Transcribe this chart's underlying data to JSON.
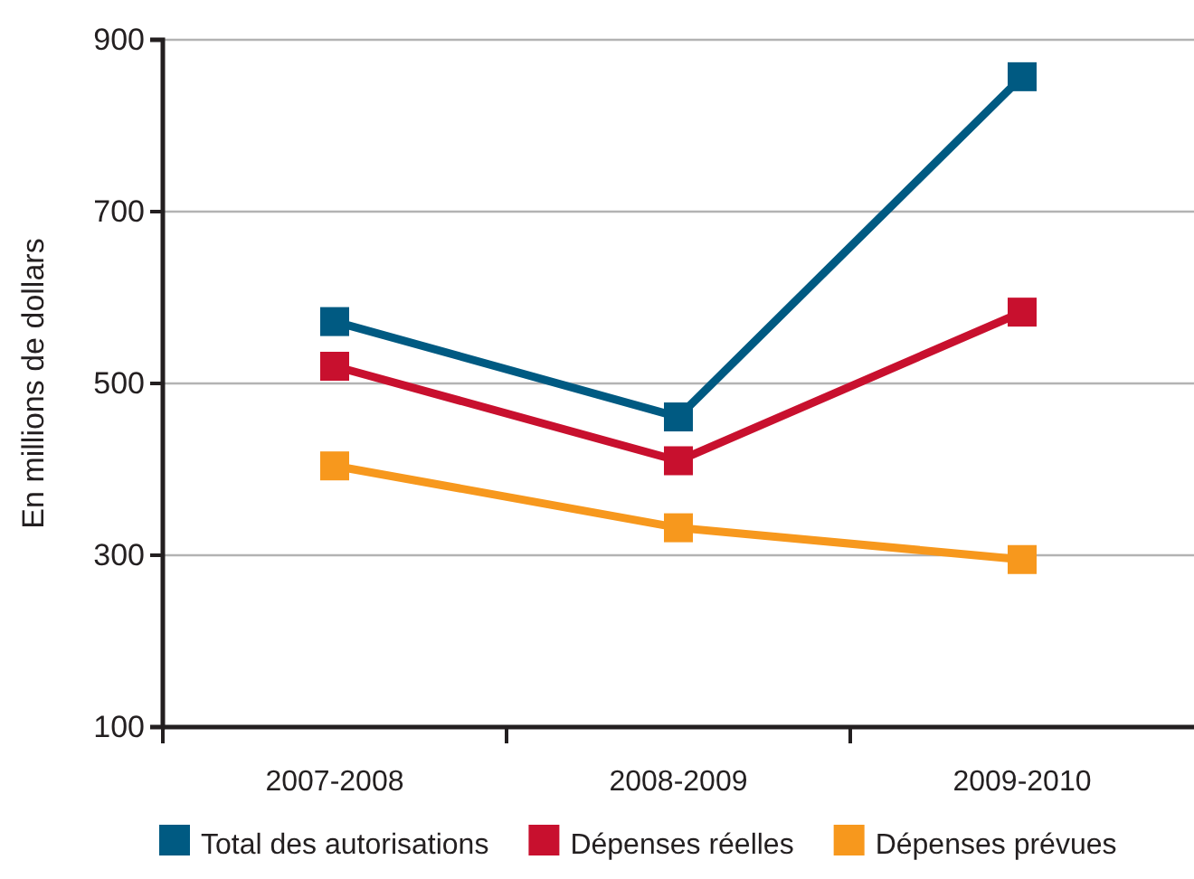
{
  "chart_data": {
    "type": "line",
    "ylabel": "En millions de dollars",
    "categories": [
      "2007-2008",
      "2008-2009",
      "2009-2010"
    ],
    "series": [
      {
        "name": "Total des autorisations",
        "color": "#005a82",
        "values": [
          572,
          461,
          857
        ]
      },
      {
        "name": "Dépenses réelles",
        "color": "#c8102e",
        "values": [
          520,
          410,
          583
        ]
      },
      {
        "name": "Dépenses prévues",
        "color": "#f7981d",
        "values": [
          404,
          332,
          295
        ]
      }
    ],
    "ylim": [
      100,
      900
    ],
    "yticks": [
      100,
      300,
      500,
      700,
      900
    ],
    "grid": "y",
    "legend": "bottom",
    "marker": "square",
    "line_style": "solid"
  }
}
